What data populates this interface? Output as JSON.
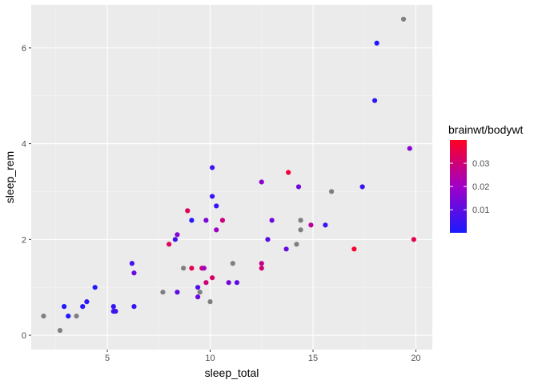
{
  "chart_data": {
    "type": "scatter",
    "xlabel": "sleep_total",
    "ylabel": "sleep_rem",
    "xlim": [
      1.3,
      20.8
    ],
    "ylim": [
      -0.3,
      6.9
    ],
    "x_ticks": [
      5,
      10,
      15,
      20
    ],
    "y_ticks": [
      0,
      2,
      4,
      6
    ],
    "grid": true,
    "legend": {
      "title": "brainwt/bodywt",
      "placement": "right",
      "range": [
        0.0001,
        0.04
      ],
      "ticks": [
        0.01,
        0.02,
        0.03
      ],
      "tick_labels": [
        "0.01",
        "0.02",
        "0.03"
      ],
      "low_color": "#1a1aff",
      "high_color": "#ff0022"
    },
    "colors": {
      "panel": "#ebebeb",
      "grid_major": "#ffffff",
      "grid_minor": "#f5f5f5",
      "missing": "#7f7f7f"
    },
    "points": [
      {
        "x": 1.9,
        "y": 0.4,
        "c": null
      },
      {
        "x": 2.7,
        "y": 0.1,
        "c": null
      },
      {
        "x": 2.9,
        "y": 0.6,
        "c": 0.001
      },
      {
        "x": 3.1,
        "y": 0.4,
        "c": 0.001
      },
      {
        "x": 3.5,
        "y": 0.4,
        "c": null
      },
      {
        "x": 3.8,
        "y": 0.6,
        "c": 0.002
      },
      {
        "x": 4.0,
        "y": 0.7,
        "c": 0.003
      },
      {
        "x": 4.4,
        "y": 1.0,
        "c": 0.001
      },
      {
        "x": 5.3,
        "y": 0.6,
        "c": 0.004
      },
      {
        "x": 5.3,
        "y": 0.5,
        "c": 0.005
      },
      {
        "x": 5.4,
        "y": 0.5,
        "c": 0.006
      },
      {
        "x": 6.2,
        "y": 1.5,
        "c": 0.006
      },
      {
        "x": 6.3,
        "y": 0.6,
        "c": 0.004
      },
      {
        "x": 6.3,
        "y": 1.3,
        "c": 0.012
      },
      {
        "x": 7.7,
        "y": 0.9,
        "c": null
      },
      {
        "x": 8.0,
        "y": 1.9,
        "c": 0.033
      },
      {
        "x": 8.3,
        "y": 2.0,
        "c": 0.006
      },
      {
        "x": 8.4,
        "y": 2.1,
        "c": 0.016
      },
      {
        "x": 8.4,
        "y": 0.9,
        "c": 0.01
      },
      {
        "x": 8.7,
        "y": 1.4,
        "c": null
      },
      {
        "x": 8.9,
        "y": 2.6,
        "c": 0.033
      },
      {
        "x": 9.1,
        "y": 1.4,
        "c": 0.034
      },
      {
        "x": 9.1,
        "y": 2.4,
        "c": 0.002
      },
      {
        "x": 9.4,
        "y": 1.0,
        "c": 0.008
      },
      {
        "x": 9.4,
        "y": 0.8,
        "c": 0.012
      },
      {
        "x": 9.5,
        "y": 0.9,
        "c": null
      },
      {
        "x": 9.6,
        "y": 1.4,
        "c": 0.03
      },
      {
        "x": 9.7,
        "y": 1.4,
        "c": 0.021
      },
      {
        "x": 9.8,
        "y": 1.1,
        "c": 0.03
      },
      {
        "x": 9.8,
        "y": 2.4,
        "c": 0.015
      },
      {
        "x": 10.0,
        "y": 0.7,
        "c": null
      },
      {
        "x": 10.1,
        "y": 1.2,
        "c": 0.032
      },
      {
        "x": 10.1,
        "y": 2.9,
        "c": 0.004
      },
      {
        "x": 10.1,
        "y": 3.5,
        "c": 0.006
      },
      {
        "x": 10.3,
        "y": 2.7,
        "c": 0.004
      },
      {
        "x": 10.3,
        "y": 2.2,
        "c": 0.02
      },
      {
        "x": 10.6,
        "y": 2.4,
        "c": 0.029
      },
      {
        "x": 10.9,
        "y": 1.1,
        "c": 0.014
      },
      {
        "x": 11.1,
        "y": 1.5,
        "c": null
      },
      {
        "x": 11.3,
        "y": 1.1,
        "c": 0.01
      },
      {
        "x": 12.5,
        "y": 1.5,
        "c": 0.028
      },
      {
        "x": 12.5,
        "y": 1.4,
        "c": 0.03
      },
      {
        "x": 12.5,
        "y": 3.2,
        "c": 0.017
      },
      {
        "x": 12.8,
        "y": 2.0,
        "c": 0.01
      },
      {
        "x": 13.0,
        "y": 2.4,
        "c": 0.013
      },
      {
        "x": 13.7,
        "y": 1.8,
        "c": 0.012
      },
      {
        "x": 13.8,
        "y": 3.4,
        "c": 0.037
      },
      {
        "x": 14.2,
        "y": 1.9,
        "c": null
      },
      {
        "x": 14.3,
        "y": 3.1,
        "c": 0.013
      },
      {
        "x": 14.4,
        "y": 2.4,
        "c": null
      },
      {
        "x": 14.4,
        "y": 2.2,
        "c": null
      },
      {
        "x": 14.9,
        "y": 2.3,
        "c": 0.025
      },
      {
        "x": 15.6,
        "y": 2.3,
        "c": 0.004
      },
      {
        "x": 15.9,
        "y": 3.0,
        "c": null
      },
      {
        "x": 17.0,
        "y": 1.8,
        "c": 0.038
      },
      {
        "x": 17.4,
        "y": 3.1,
        "c": 0.004
      },
      {
        "x": 18.0,
        "y": 4.9,
        "c": 0.003
      },
      {
        "x": 18.1,
        "y": 6.1,
        "c": 0.001
      },
      {
        "x": 19.4,
        "y": 6.6,
        "c": null
      },
      {
        "x": 19.7,
        "y": 3.9,
        "c": 0.016
      },
      {
        "x": 19.9,
        "y": 2.0,
        "c": 0.035
      }
    ]
  }
}
